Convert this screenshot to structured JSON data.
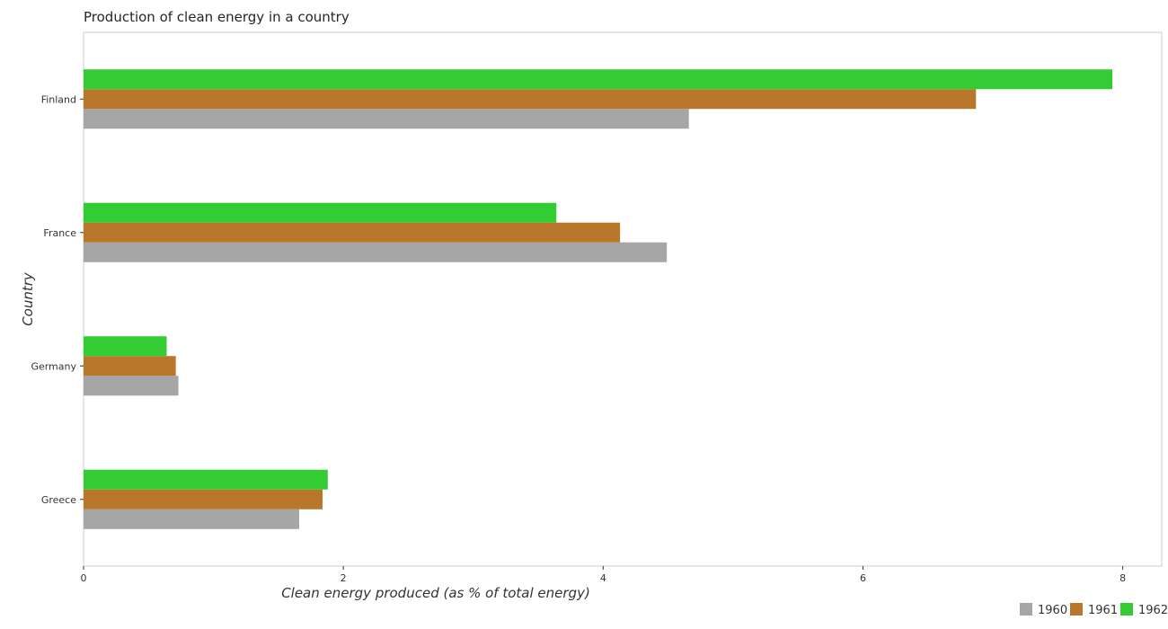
{
  "chart_data": {
    "type": "bar",
    "orientation": "horizontal",
    "title": "Production of clean energy in a country",
    "xlabel": "Clean energy produced (as % of total energy)",
    "ylabel": "Country",
    "categories": [
      "Finland",
      "France",
      "Germany",
      "Greece"
    ],
    "xlim": [
      0,
      8.3
    ],
    "xticks": [
      0,
      2,
      4,
      6,
      8
    ],
    "grid": false,
    "legend_position": "bottom-right",
    "series": [
      {
        "name": "1960",
        "color": "#a6a6a6",
        "values": [
          4.66,
          4.49,
          0.73,
          1.66
        ]
      },
      {
        "name": "1961",
        "color": "#b8772a",
        "values": [
          6.87,
          4.13,
          0.71,
          1.84
        ]
      },
      {
        "name": "1962",
        "color": "#33cc33",
        "values": [
          7.92,
          3.64,
          0.64,
          1.88
        ]
      }
    ]
  }
}
